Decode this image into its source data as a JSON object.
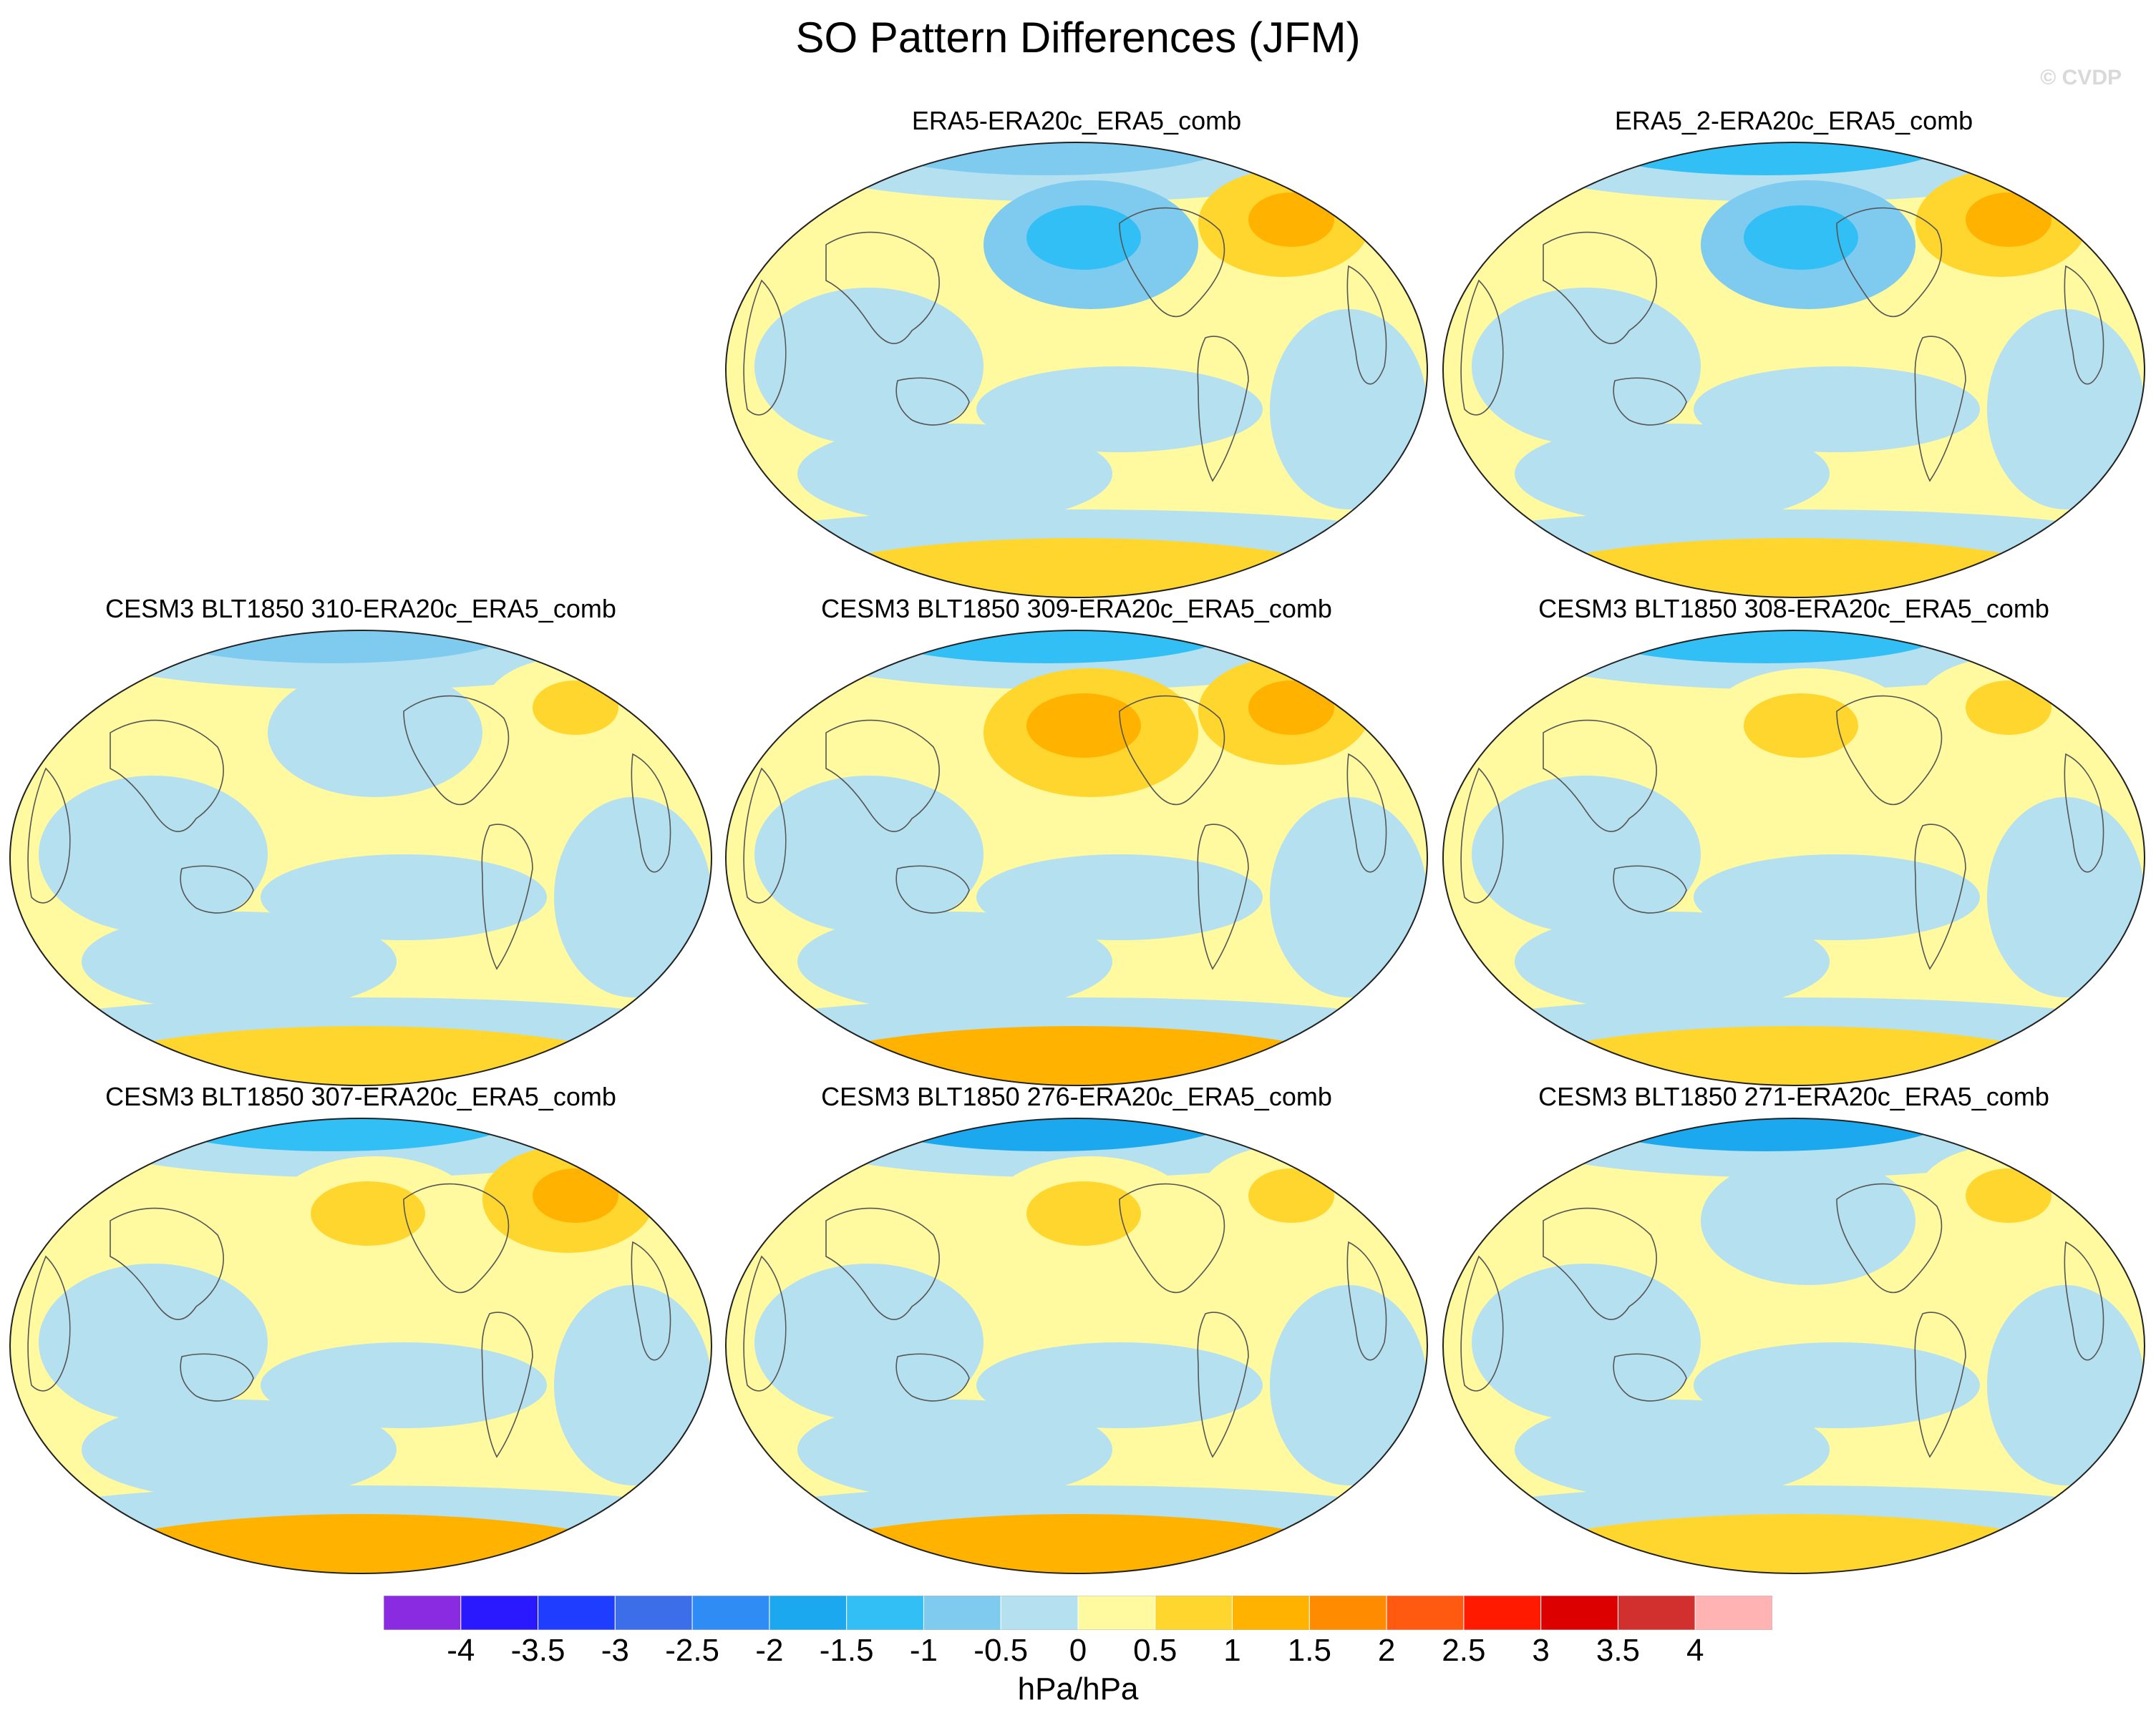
{
  "title": "SO Pattern Differences (JFM)",
  "watermark": "© CVDP",
  "chart_data": {
    "type": "heatmap",
    "projection": "global map (Robinson-like), Pacific-centered",
    "panels": [
      {
        "title": "ERA5-ERA20c_ERA5_comb",
        "pattern": "Mostly 0 to 0.5 hPa/hPa; negative (-1 to -1.5) over North Pacific; positive (1 to 1.5) over North Atlantic/Greenland; weak negatives in South Pacific; 0.5-1 near Antarctica"
      },
      {
        "title": "ERA5_2-ERA20c_ERA5_comb",
        "pattern": "Similar to ERA5; stronger North Pacific negative (-1.5); Arctic negative band; North Atlantic positive (1.5); positive ring near Antarctica"
      },
      {
        "title": "CESM3 BLT1850 310-ERA20c_ERA5_comb",
        "pattern": "Weak Arctic negatives (-1 to -1.5); widespread -0.5 to 0 over Indian Ocean and tropics; 0.5-1 near Antarctica and North Atlantic"
      },
      {
        "title": "CESM3 BLT1850 309-ERA20c_ERA5_comb",
        "pattern": "Strong Arctic negative (-1.5); positive cells (1 to 1.5) over North Pacific and North Atlantic; 1 to 1.5 band around Antarctica"
      },
      {
        "title": "CESM3 BLT1850 308-ERA20c_ERA5_comb",
        "pattern": "Arctic negative (-1.5); positive over Siberia/Alaska (1); mostly 0-0.5 elsewhere; 0.5-1 near Antarctica"
      },
      {
        "title": "CESM3 BLT1850 307-ERA20c_ERA5_comb",
        "pattern": "Arctic negative (-1 to -1.5); positive North Atlantic cell (1.5); strong positive (1 to 1.5) around Antarctica"
      },
      {
        "title": "CESM3 BLT1850 276-ERA20c_ERA5_comb",
        "pattern": "Strong Arctic negative (-1.5 to -2); North Atlantic positive (1); 0.5-1.5 around Antarctica"
      },
      {
        "title": "CESM3 BLT1850 271-ERA20c_ERA5_comb",
        "pattern": "Strong Arctic negative (-2); North Atlantic positive (1); mostly 0-0.5 elsewhere; 0.5-1 near Antarctica"
      }
    ],
    "colorbar": {
      "levels": [
        -4,
        -3.5,
        -3,
        -2.5,
        -2,
        -1.5,
        -1,
        -0.5,
        0,
        0.5,
        1,
        1.5,
        2,
        2.5,
        3,
        3.5,
        4
      ],
      "tick_labels": [
        "-4",
        "-3.5",
        "-3",
        "-2.5",
        "-2",
        "-1.5",
        "-1",
        "-0.5",
        "0",
        "0.5",
        "1",
        "1.5",
        "2",
        "2.5",
        "3",
        "3.5",
        "4"
      ],
      "colors": [
        "#8a2be2",
        "#2a18ff",
        "#1f3dff",
        "#3b6ee8",
        "#2f8cf5",
        "#1ba8ee",
        "#32bff5",
        "#7fcaef",
        "#b5e0f0",
        "#fff9a0",
        "#ffd62e",
        "#ffb300",
        "#ff8c00",
        "#ff5a10",
        "#ff1a00",
        "#dc0000",
        "#d22f2f",
        "#ffb3b3"
      ],
      "units": "hPa/hPa"
    }
  }
}
